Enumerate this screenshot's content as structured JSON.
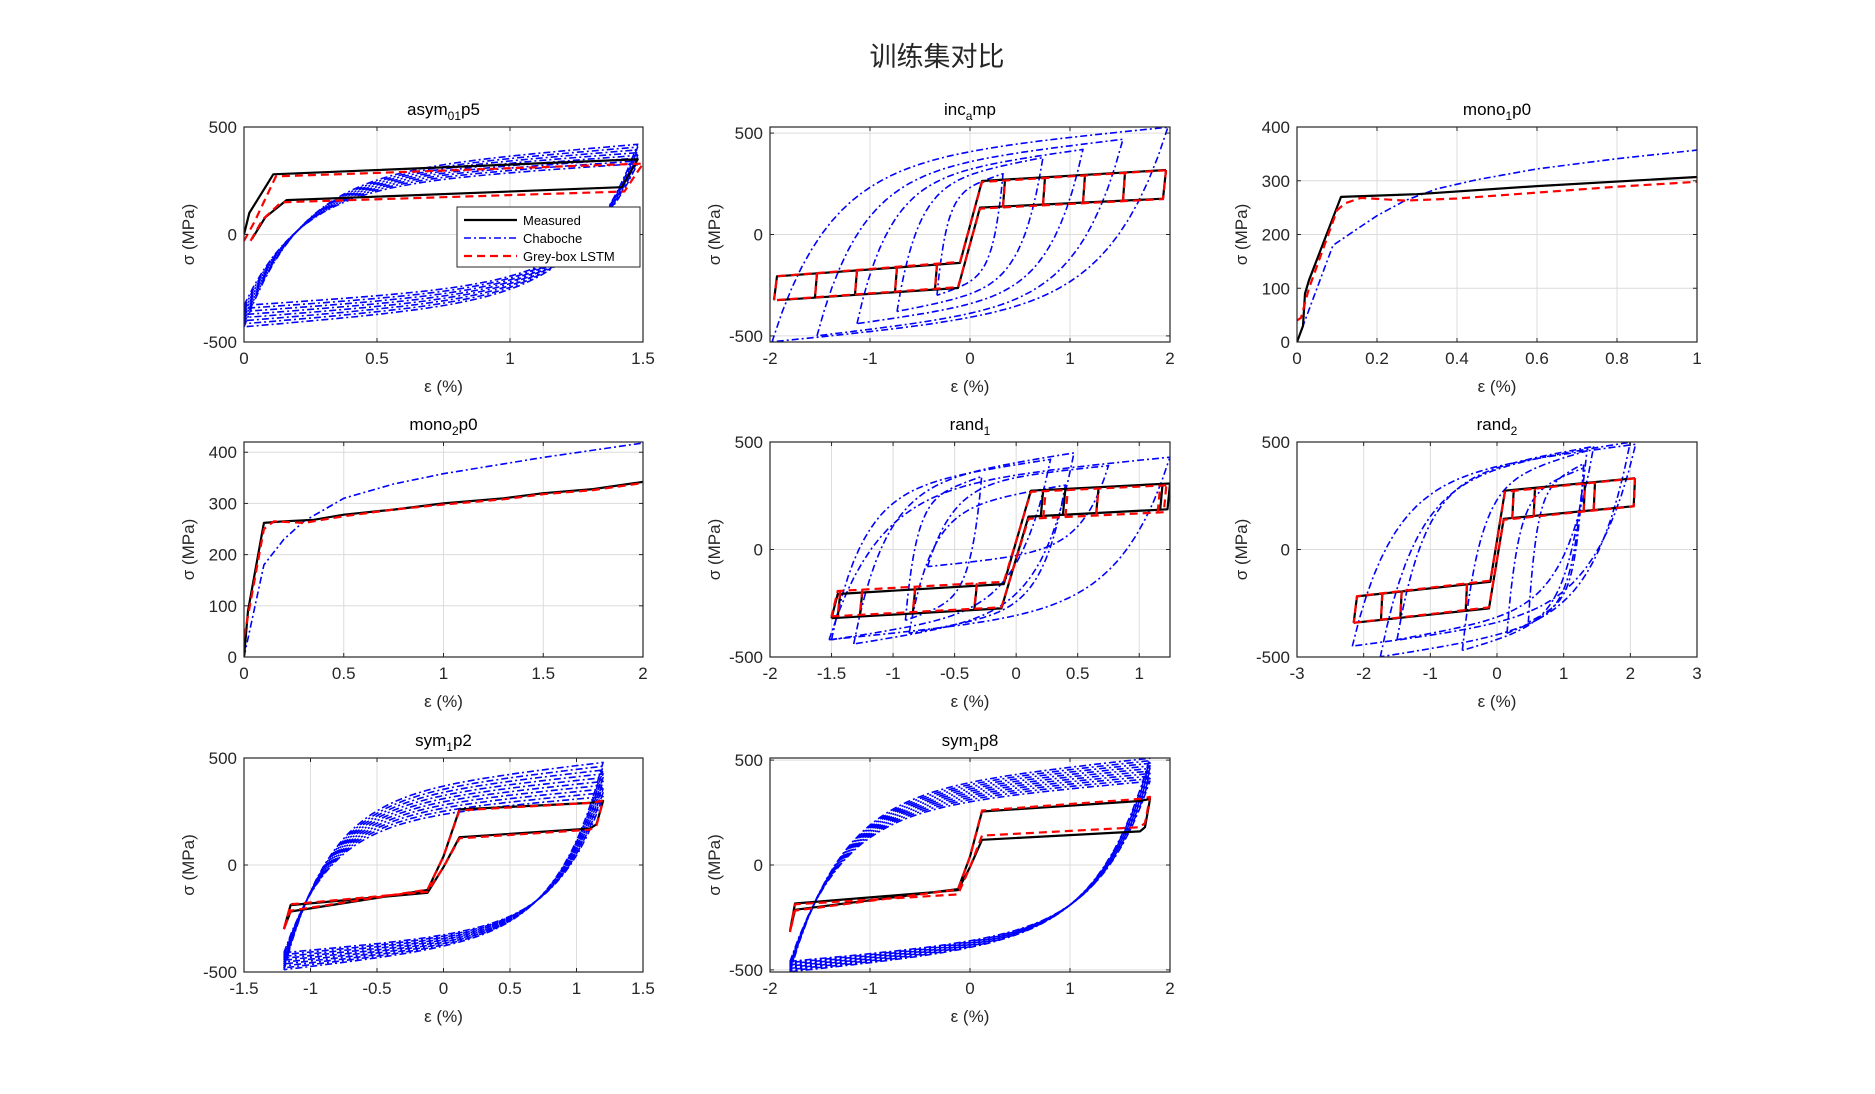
{
  "figure": {
    "suptitle": "训练集对比",
    "colors": {
      "measured": "#000000",
      "chaboche": "#0000ff",
      "lstm": "#ff0000"
    }
  },
  "legend": {
    "placement": "inside asym_01p5, right-center",
    "entries": [
      {
        "label": "Measured",
        "style": "solid",
        "color": "#000000"
      },
      {
        "label": "Chaboche",
        "style": "dash-dot",
        "color": "#0000ff"
      },
      {
        "label": "Grey-box LSTM",
        "style": "dashed",
        "color": "#ff0000"
      }
    ]
  },
  "chart_data": [
    {
      "id": "asym01p5",
      "type": "line",
      "title_main": "asym",
      "title_sub": "01",
      "title_tail": "p5",
      "xlabel": "ε (%)",
      "ylabel": "σ (MPa)",
      "xlim": [
        0,
        1.5
      ],
      "ylim": [
        -500,
        500
      ],
      "xticks": [
        0,
        0.5,
        1,
        1.5
      ],
      "xticklabels": [
        "0",
        "0.5",
        "1",
        "1.5"
      ],
      "yticks": [
        -500,
        0,
        500
      ],
      "yticklabels": [
        "-500",
        "0",
        "500"
      ],
      "grid": true,
      "has_legend": true,
      "series": [
        {
          "name": "Measured",
          "kind": "loop",
          "emin": 0.0,
          "emax": 1.48,
          "upper": [
            [
              0.0,
              0
            ],
            [
              0.02,
              100
            ],
            [
              0.11,
              280
            ],
            [
              1.48,
              350
            ]
          ],
          "lower": [
            [
              1.48,
              350
            ],
            [
              1.42,
              220
            ],
            [
              0.16,
              160
            ],
            [
              0.08,
              80
            ],
            [
              0.03,
              -20
            ]
          ]
        },
        {
          "name": "Chaboche",
          "kind": "cyclic",
          "emin": 0.0,
          "emax": 1.48,
          "smax": [
            330,
            420
          ],
          "smin": [
            -330,
            -430
          ],
          "cycles": 8
        },
        {
          "name": "Grey-box LSTM",
          "kind": "loop",
          "emin": 0.0,
          "emax": 1.5,
          "upper": [
            [
              0.0,
              -30
            ],
            [
              0.04,
              60
            ],
            [
              0.12,
              270
            ],
            [
              1.5,
              330
            ]
          ],
          "lower": [
            [
              1.5,
              330
            ],
            [
              1.43,
              200
            ],
            [
              0.14,
              150
            ],
            [
              0.07,
              70
            ],
            [
              0.02,
              -40
            ]
          ]
        }
      ]
    },
    {
      "id": "incamp",
      "type": "line",
      "title_main": "inc",
      "title_sub": "a",
      "title_tail": "mp",
      "xlabel": "ε (%)",
      "ylabel": "σ (MPa)",
      "xlim": [
        -2,
        2
      ],
      "ylim": [
        -530,
        530
      ],
      "xticks": [
        -2,
        -1,
        0,
        1,
        2
      ],
      "xticklabels": [
        "-2",
        "-1",
        "0",
        "1",
        "2"
      ],
      "yticks": [
        -500,
        0,
        500
      ],
      "yticklabels": [
        "-500",
        "0",
        "500"
      ],
      "grid": true,
      "has_legend": false,
      "series": [
        {
          "name": "Measured",
          "kind": "steps",
          "amplitudes": [
            0.33,
            0.73,
            1.13,
            1.53,
            1.93
          ],
          "sy_up": 260,
          "sy_dn": 130,
          "hard": 30
        },
        {
          "name": "Chaboche",
          "kind": "family",
          "amplitudes": [
            0.33,
            0.73,
            1.13,
            1.53,
            1.98
          ],
          "smax": [
            300,
            380,
            420,
            470,
            530
          ],
          "smin": [
            -300,
            -380,
            -440,
            -500,
            -530
          ]
        },
        {
          "name": "Grey-box LSTM",
          "kind": "steps",
          "amplitudes": [
            0.33,
            0.73,
            1.13,
            1.53,
            1.93
          ],
          "sy_up": 255,
          "sy_dn": 125,
          "hard": 32
        }
      ]
    },
    {
      "id": "mono1p0",
      "type": "line",
      "title_main": "mono",
      "title_sub": "1",
      "title_tail": "p0",
      "xlabel": "ε (%)",
      "ylabel": "σ (MPa)",
      "xlim": [
        0,
        1
      ],
      "ylim": [
        0,
        400
      ],
      "xticks": [
        0,
        0.2,
        0.4,
        0.6,
        0.8,
        1
      ],
      "xticklabels": [
        "0",
        "0.2",
        "0.4",
        "0.6",
        "0.8",
        "1"
      ],
      "yticks": [
        0,
        100,
        200,
        300,
        400
      ],
      "yticklabels": [
        "0",
        "100",
        "200",
        "300",
        "400"
      ],
      "grid": true,
      "has_legend": false,
      "series": [
        {
          "name": "Measured",
          "kind": "points",
          "points": [
            [
              0,
              0
            ],
            [
              0.015,
              30
            ],
            [
              0.02,
              90
            ],
            [
              0.03,
              115
            ],
            [
              0.11,
              270
            ],
            [
              0.3,
              275
            ],
            [
              0.6,
              290
            ],
            [
              1.0,
              307
            ]
          ]
        },
        {
          "name": "Chaboche",
          "kind": "points",
          "points": [
            [
              0,
              0
            ],
            [
              0.09,
              180
            ],
            [
              0.15,
              210
            ],
            [
              0.2,
              235
            ],
            [
              0.27,
              263
            ],
            [
              0.35,
              285
            ],
            [
              0.45,
              302
            ],
            [
              0.6,
              322
            ],
            [
              0.8,
              341
            ],
            [
              1.0,
              357
            ]
          ]
        },
        {
          "name": "Grey-box LSTM",
          "kind": "points",
          "points": [
            [
              0,
              40
            ],
            [
              0.01,
              45
            ],
            [
              0.03,
              100
            ],
            [
              0.1,
              245
            ],
            [
              0.12,
              258
            ],
            [
              0.16,
              268
            ],
            [
              0.27,
              263
            ],
            [
              0.4,
              267
            ],
            [
              0.6,
              278
            ],
            [
              0.8,
              289
            ],
            [
              1.0,
              298
            ]
          ]
        }
      ]
    },
    {
      "id": "mono2p0",
      "type": "line",
      "title_main": "mono",
      "title_sub": "2",
      "title_tail": "p0",
      "xlabel": "ε (%)",
      "ylabel": "σ (MPa)",
      "xlim": [
        0,
        2
      ],
      "ylim": [
        0,
        420
      ],
      "xticks": [
        0,
        0.5,
        1,
        1.5,
        2
      ],
      "xticklabels": [
        "0",
        "0.5",
        "1",
        "1.5",
        "2"
      ],
      "yticks": [
        0,
        100,
        200,
        300,
        400
      ],
      "yticklabels": [
        "0",
        "100",
        "200",
        "300",
        "400"
      ],
      "grid": true,
      "has_legend": false,
      "series": [
        {
          "name": "Measured",
          "kind": "points",
          "points": [
            [
              0,
              0
            ],
            [
              0.02,
              90
            ],
            [
              0.1,
              262
            ],
            [
              0.2,
              265
            ],
            [
              0.35,
              268
            ],
            [
              0.5,
              278
            ],
            [
              0.75,
              288
            ],
            [
              1.0,
              300
            ],
            [
              1.3,
              310
            ],
            [
              1.5,
              320
            ],
            [
              1.75,
              328
            ],
            [
              2.0,
              342
            ]
          ]
        },
        {
          "name": "Chaboche",
          "kind": "points",
          "points": [
            [
              0,
              0
            ],
            [
              0.1,
              180
            ],
            [
              0.2,
              230
            ],
            [
              0.3,
              265
            ],
            [
              0.5,
              310
            ],
            [
              0.75,
              338
            ],
            [
              1.0,
              358
            ],
            [
              1.5,
              390
            ],
            [
              2.0,
              418
            ]
          ]
        },
        {
          "name": "Grey-box LSTM",
          "kind": "points",
          "points": [
            [
              0,
              40
            ],
            [
              0.02,
              80
            ],
            [
              0.1,
              250
            ],
            [
              0.15,
              265
            ],
            [
              0.3,
              262
            ],
            [
              0.5,
              275
            ],
            [
              0.75,
              288
            ],
            [
              1.0,
              298
            ],
            [
              1.3,
              308
            ],
            [
              1.5,
              318
            ],
            [
              1.75,
              326
            ],
            [
              2.0,
              340
            ]
          ]
        }
      ]
    },
    {
      "id": "rand1",
      "type": "line",
      "title_main": "rand",
      "title_sub": "1",
      "title_tail": "",
      "xlabel": "ε (%)",
      "ylabel": "σ (MPa)",
      "xlim": [
        -2,
        1.25
      ],
      "ylim": [
        -500,
        500
      ],
      "xticks": [
        -2,
        -1.5,
        -1,
        -0.5,
        0,
        0.5,
        1
      ],
      "xticklabels": [
        "-2",
        "-1.5",
        "-1",
        "-0.5",
        "0",
        "0.5",
        "1"
      ],
      "yticks": [
        -500,
        0,
        500
      ],
      "yticklabels": [
        "-500",
        "0",
        "500"
      ],
      "grid": true,
      "has_legend": false,
      "series": [
        {
          "name": "Measured",
          "kind": "steps2",
          "left": [
            -1.5,
            -1.43,
            -1.25,
            -0.82,
            -0.32
          ],
          "right": [
            1.23,
            1.17,
            0.65,
            0.38,
            0.2
          ],
          "sy_up": 270,
          "sy_dn": 150,
          "hard": 30
        },
        {
          "name": "Chaboche",
          "kind": "family2",
          "loops": [
            [
              -1.52,
              1.25,
              430,
              -420
            ],
            [
              -1.32,
              0.47,
              450,
              -440
            ],
            [
              -1.5,
              0.28,
              420,
              -420
            ],
            [
              -0.87,
              0.4,
              300,
              -390
            ],
            [
              -0.72,
              0.75,
              390,
              -80
            ],
            [
              -0.9,
              -0.28,
              340,
              -330
            ]
          ]
        },
        {
          "name": "Grey-box LSTM",
          "kind": "steps2",
          "left": [
            -1.5,
            -1.43,
            -1.25,
            -0.82,
            -0.32
          ],
          "right": [
            1.2,
            1.15,
            0.65,
            0.4,
            0.22
          ],
          "sy_up": 265,
          "sy_dn": 140,
          "hard": 28
        }
      ]
    },
    {
      "id": "rand2",
      "type": "line",
      "title_main": "rand",
      "title_sub": "2",
      "title_tail": "",
      "xlabel": "ε (%)",
      "ylabel": "σ (MPa)",
      "xlim": [
        -3,
        3
      ],
      "ylim": [
        -500,
        500
      ],
      "xticks": [
        -3,
        -2,
        -1,
        0,
        1,
        2,
        3
      ],
      "xticklabels": [
        "-3",
        "-2",
        "-1",
        "0",
        "1",
        "2",
        "3"
      ],
      "yticks": [
        -500,
        0,
        500
      ],
      "yticklabels": [
        "-500",
        "0",
        "500"
      ],
      "grid": true,
      "has_legend": false,
      "series": [
        {
          "name": "Measured",
          "kind": "steps2",
          "left": [
            -2.15,
            -1.72,
            -1.43,
            -0.45
          ],
          "right": [
            2.05,
            1.45,
            1.3,
            0.55,
            0.23
          ],
          "sy_up": 270,
          "sy_dn": 140,
          "hard": 30
        },
        {
          "name": "Chaboche",
          "kind": "family2",
          "loops": [
            [
              -2.17,
              2.08,
              490,
              -450
            ],
            [
              -1.75,
              2.0,
              500,
              -500
            ],
            [
              -1.5,
              1.45,
              480,
              -420
            ],
            [
              -0.52,
              1.35,
              460,
              -470
            ],
            [
              0.15,
              1.3,
              380,
              -390
            ],
            [
              0.47,
              1.3,
              400,
              -340
            ]
          ]
        },
        {
          "name": "Grey-box LSTM",
          "kind": "steps2",
          "left": [
            -2.15,
            -1.72,
            -1.43,
            -0.45
          ],
          "right": [
            2.05,
            1.45,
            1.3,
            0.55,
            0.23
          ],
          "sy_up": 265,
          "sy_dn": 135,
          "hard": 32
        }
      ]
    },
    {
      "id": "sym1p2",
      "type": "line",
      "title_main": "sym",
      "title_sub": "1",
      "title_tail": "p2",
      "xlabel": "ε (%)",
      "ylabel": "σ (MPa)",
      "xlim": [
        -1.5,
        1.5
      ],
      "ylim": [
        -500,
        500
      ],
      "xticks": [
        -1.5,
        -1,
        -0.5,
        0,
        0.5,
        1,
        1.5
      ],
      "xticklabels": [
        "-1.5",
        "-1",
        "-0.5",
        "0",
        "0.5",
        "1",
        "1.5"
      ],
      "yticks": [
        -500,
        0,
        500
      ],
      "yticklabels": [
        "-500",
        "0",
        "500"
      ],
      "grid": true,
      "has_legend": false,
      "series": [
        {
          "name": "Measured",
          "kind": "sym",
          "amp": 1.2,
          "sy_up": 260,
          "sy_dn": 130,
          "smax": 300,
          "smin": -300
        },
        {
          "name": "Chaboche",
          "kind": "cyclicSym",
          "amp": 1.2,
          "smax": [
            320,
            480
          ],
          "smin": [
            -410,
            -490
          ],
          "cycles": 10
        },
        {
          "name": "Grey-box LSTM",
          "kind": "sym",
          "amp": 1.2,
          "sy_up": 255,
          "sy_dn": 125,
          "smax": 300,
          "smin": -300
        }
      ]
    },
    {
      "id": "sym1p8",
      "type": "line",
      "title_main": "sym",
      "title_sub": "1",
      "title_tail": "p8",
      "xlabel": "ε (%)",
      "ylabel": "σ (MPa)",
      "xlim": [
        -2,
        2
      ],
      "ylim": [
        -510,
        510
      ],
      "xticks": [
        -2,
        -1,
        0,
        1,
        2
      ],
      "xticklabels": [
        "-2",
        "-1",
        "0",
        "1",
        "2"
      ],
      "yticks": [
        -500,
        0,
        500
      ],
      "yticklabels": [
        "-500",
        "0",
        "500"
      ],
      "grid": true,
      "has_legend": false,
      "series": [
        {
          "name": "Measured",
          "kind": "sym",
          "amp": 1.8,
          "sy_up": 255,
          "sy_dn": 120,
          "smax": 315,
          "smin": -315
        },
        {
          "name": "Chaboche",
          "kind": "cyclicSym",
          "amp": 1.8,
          "smax": [
            400,
            510
          ],
          "smin": [
            -460,
            -510
          ],
          "cycles": 10
        },
        {
          "name": "Grey-box LSTM",
          "kind": "sym",
          "amp": 1.8,
          "sy_up": 260,
          "sy_dn": 140,
          "smax": 325,
          "smin": -320
        }
      ]
    }
  ]
}
